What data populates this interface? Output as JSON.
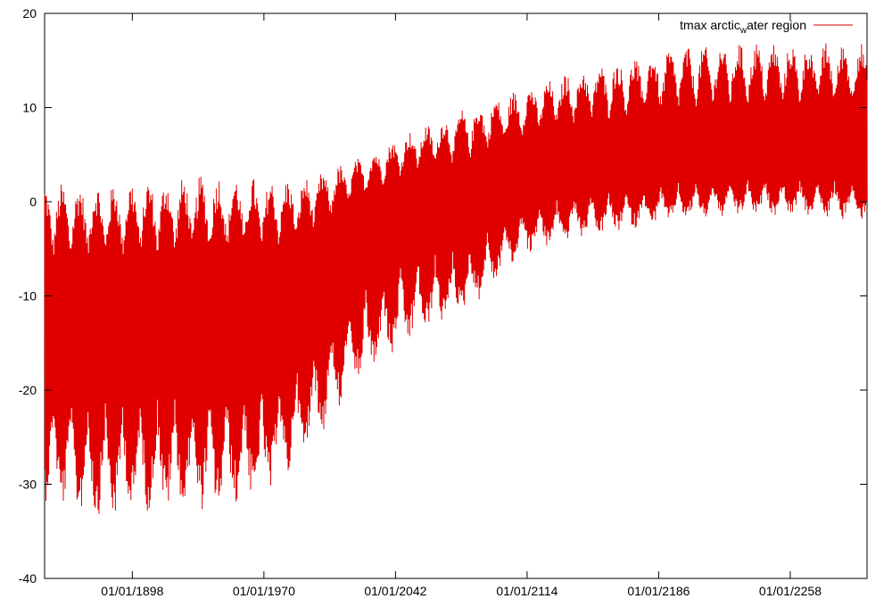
{
  "chart_data": {
    "type": "line",
    "title": "",
    "xlabel": "",
    "ylabel": "",
    "ylim": [
      -40,
      20
    ],
    "yticks": [
      20,
      10,
      0,
      -10,
      -20,
      -30,
      -40
    ],
    "xlim": [
      "01/01/1850",
      "01/01/2300"
    ],
    "xticks": [
      "01/01/1898",
      "01/01/1970",
      "01/01/2042",
      "01/01/2114",
      "01/01/2186",
      "01/01/2258"
    ],
    "grid": false,
    "legend": {
      "placement": "top-right",
      "entries": [
        {
          "base": "tmax arctic",
          "sub": "w",
          "rest": "ater region",
          "color": "#e00000"
        }
      ]
    },
    "series": [
      {
        "name": "tmax arctic_water region",
        "color": "#e00000",
        "envelope": {
          "years": [
            1850,
            1880,
            1910,
            1940,
            1970,
            1990,
            2020,
            2050,
            2080,
            2110,
            2140,
            2170,
            2200,
            2230,
            2260,
            2300
          ],
          "upper": [
            2,
            2,
            2.5,
            3,
            2.5,
            2.5,
            4.5,
            7.5,
            10,
            12,
            14,
            15.5,
            16.5,
            17,
            17,
            17
          ],
          "lower": [
            -32,
            -34,
            -33,
            -33,
            -32,
            -28,
            -20,
            -15,
            -12,
            -6,
            -4,
            -3,
            -2,
            -1.5,
            -1.5,
            -2
          ],
          "center": [
            -12,
            -12,
            -12,
            -12,
            -11,
            -9,
            -3,
            0,
            0,
            3,
            4,
            4,
            5,
            5,
            5,
            5
          ]
        },
        "oscillation_period_years": 19,
        "series_data_points_per_year": 4
      }
    ]
  }
}
